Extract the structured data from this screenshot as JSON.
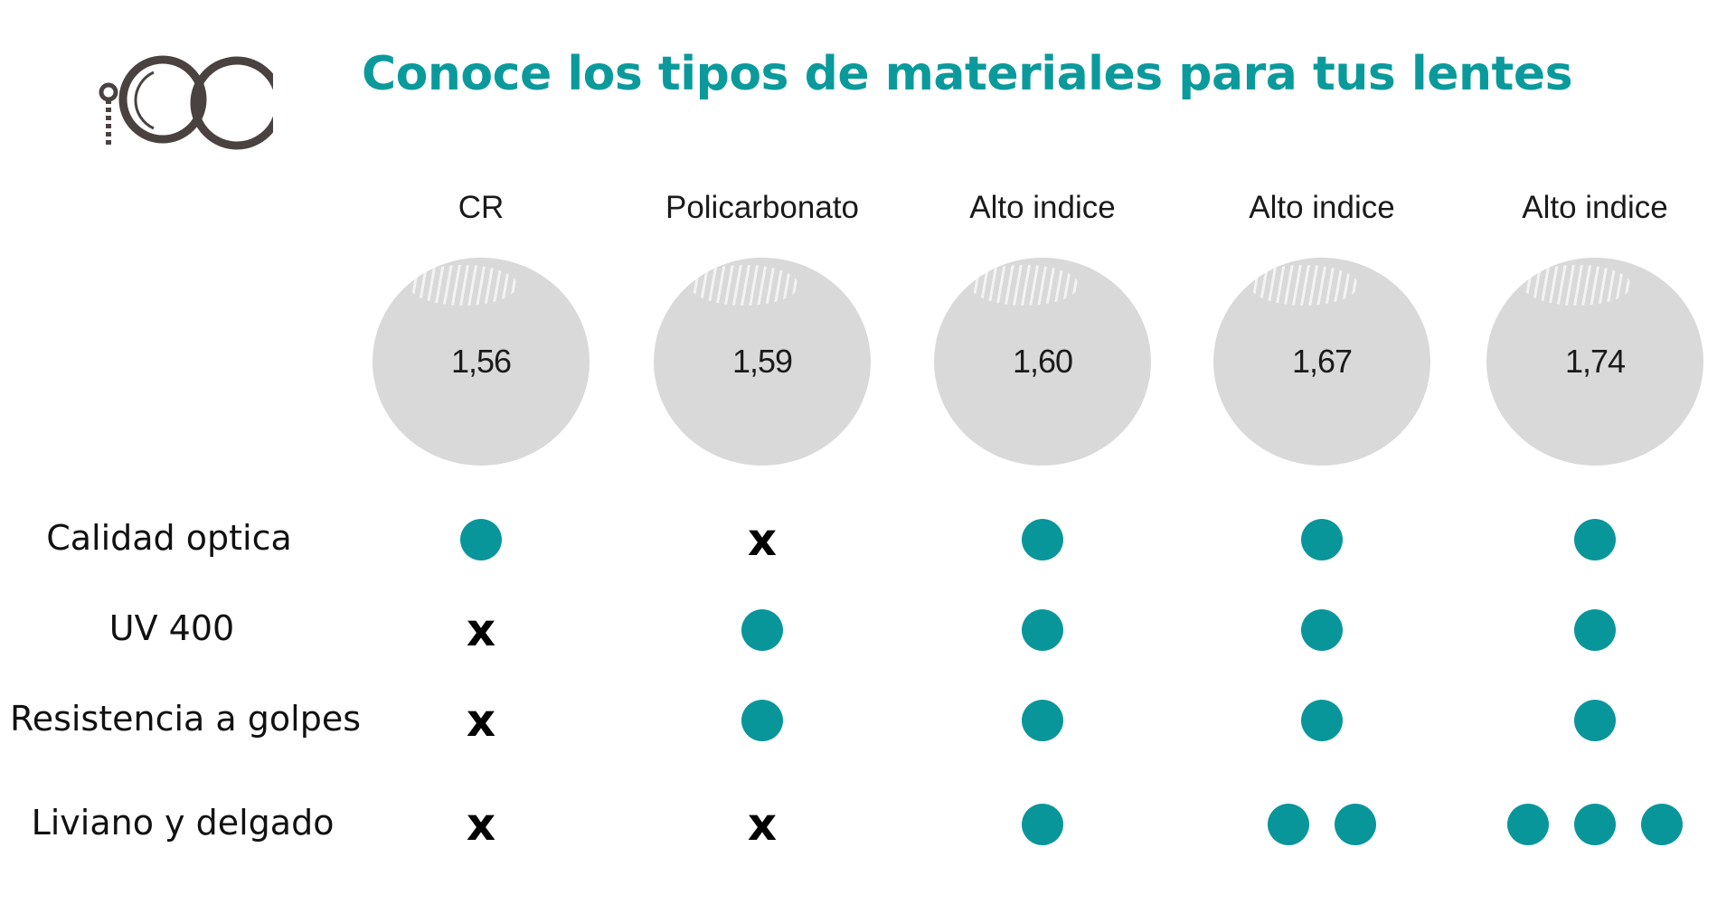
{
  "header": {
    "title": "Conoce los tipos de materiales para tus lentes",
    "logo_icon": "glasses-logo-icon",
    "title_color": "#0b9a9c"
  },
  "materials": [
    {
      "name": "CR",
      "index": "1,56"
    },
    {
      "name": "Policarbonato",
      "index": "1,59"
    },
    {
      "name": "Alto indice",
      "index": "1,60"
    },
    {
      "name": "Alto indice",
      "index": "1,67"
    },
    {
      "name": "Alto indice",
      "index": "1,74"
    }
  ],
  "properties": [
    {
      "label": "Calidad optica",
      "marks": [
        [
          "dot"
        ],
        [
          "x"
        ],
        [
          "dot"
        ],
        [
          "dot"
        ],
        [
          "dot"
        ]
      ]
    },
    {
      "label": "UV 400",
      "marks": [
        [
          "x"
        ],
        [
          "dot"
        ],
        [
          "dot"
        ],
        [
          "dot"
        ],
        [
          "dot"
        ]
      ]
    },
    {
      "label": "Resistencia a golpes",
      "marks": [
        [
          "x"
        ],
        [
          "dot"
        ],
        [
          "dot"
        ],
        [
          "dot"
        ],
        [
          "dot"
        ]
      ]
    },
    {
      "label": "Liviano y delgado",
      "marks": [
        [
          "x"
        ],
        [
          "x"
        ],
        [
          "dot"
        ],
        [
          "dot",
          "dot"
        ],
        [
          "dot",
          "dot",
          "dot"
        ]
      ]
    }
  ],
  "marks": {
    "x_symbol": "x",
    "dot_color": "#09969a"
  }
}
